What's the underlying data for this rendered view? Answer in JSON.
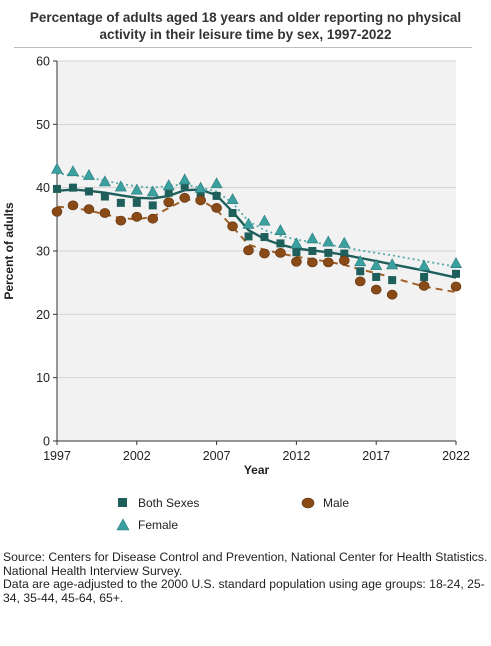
{
  "title": "Percentage of adults aged 18 years and older reporting no physical activity in their leisure time by sex, 1997-2022",
  "colors": {
    "both": "#1f5f5b",
    "male": "#8a4a16",
    "male_line": "#a0622a",
    "female": "#3aa0a0",
    "female_line": "#5aa9a9",
    "plot_bg": "#f2f2f2",
    "grid": "#ffffff"
  },
  "chart_data": {
    "type": "scatter",
    "title": "Percentage of adults aged 18 years and older reporting no physical activity in their leisure time by sex, 1997-2022",
    "xlabel": "Year",
    "ylabel": "Percent of adults",
    "xlim": [
      1997,
      2022
    ],
    "ylim": [
      0,
      60
    ],
    "xticks": [
      1997,
      2002,
      2007,
      2012,
      2017,
      2022
    ],
    "yticks": [
      0,
      10,
      20,
      30,
      40,
      50,
      60
    ],
    "grid": true,
    "legend": "bottom",
    "series": [
      {
        "name": "Both Sexes",
        "marker": "square",
        "trend": "solid",
        "x": [
          1997,
          1998,
          1999,
          2000,
          2001,
          2002,
          2003,
          2004,
          2005,
          2006,
          2007,
          2008,
          2009,
          2010,
          2011,
          2012,
          2013,
          2014,
          2015,
          2016,
          2017,
          2018,
          2020,
          2022
        ],
        "values": [
          39.8,
          40.0,
          39.4,
          38.6,
          37.6,
          37.6,
          37.2,
          39.2,
          40.3,
          39.0,
          38.7,
          36.0,
          32.3,
          32.2,
          31.2,
          29.8,
          30.0,
          29.7,
          29.6,
          26.8,
          25.9,
          25.4,
          25.9,
          26.4
        ],
        "trend_values": [
          39.5,
          39.7,
          39.5,
          39.2,
          38.8,
          38.4,
          38.3,
          38.7,
          39.6,
          39.7,
          38.8,
          36.2,
          33.3,
          31.9,
          31.0,
          30.4,
          30.1,
          29.8,
          29.4,
          28.9,
          28.4,
          27.9,
          26.9,
          25.8
        ]
      },
      {
        "name": "Male",
        "marker": "circle",
        "trend": "dashed",
        "x": [
          1997,
          1998,
          1999,
          2000,
          2001,
          2002,
          2003,
          2004,
          2005,
          2006,
          2007,
          2008,
          2009,
          2010,
          2011,
          2012,
          2013,
          2014,
          2015,
          2016,
          2017,
          2018,
          2020,
          2022
        ],
        "values": [
          36.2,
          37.2,
          36.6,
          36.0,
          34.8,
          35.4,
          35.1,
          37.7,
          38.4,
          38.0,
          36.8,
          33.9,
          30.1,
          29.6,
          29.7,
          28.3,
          28.2,
          28.2,
          28.5,
          25.2,
          23.9,
          23.1,
          24.5,
          24.4
        ],
        "trend_values": [
          37.0,
          36.8,
          36.4,
          35.8,
          35.2,
          35.0,
          35.4,
          36.8,
          38.1,
          38.1,
          36.5,
          33.8,
          31.0,
          30.2,
          29.6,
          29.1,
          28.7,
          28.3,
          27.8,
          27.1,
          26.5,
          25.8,
          24.4,
          23.5
        ]
      },
      {
        "name": "Female",
        "marker": "triangle",
        "trend": "dotted",
        "x": [
          1997,
          1998,
          1999,
          2000,
          2001,
          2002,
          2003,
          2004,
          2005,
          2006,
          2007,
          2008,
          2009,
          2010,
          2011,
          2012,
          2013,
          2014,
          2015,
          2016,
          2017,
          2018,
          2020,
          2022
        ],
        "values": [
          42.9,
          42.5,
          41.9,
          40.9,
          40.1,
          39.6,
          39.3,
          40.3,
          41.2,
          39.9,
          40.6,
          38.1,
          34.2,
          34.7,
          33.2,
          31.1,
          31.9,
          31.4,
          31.2,
          28.3,
          27.7,
          27.8,
          27.6,
          28.0
        ],
        "trend_values": [
          42.2,
          42.0,
          41.6,
          41.1,
          40.6,
          40.2,
          40.0,
          40.3,
          40.5,
          40.0,
          39.4,
          37.6,
          34.7,
          33.3,
          32.4,
          31.8,
          31.4,
          31.0,
          30.6,
          30.1,
          29.7,
          29.3,
          28.4,
          27.5
        ]
      }
    ]
  },
  "legend": {
    "both": "Both Sexes",
    "male": "Male",
    "female": "Female"
  },
  "source": {
    "line1": "Source: Centers for Disease Control and Prevention, National Center for Health Statistics. National Health Interview Survey.",
    "line2": "Data are age-adjusted to the 2000 U.S. standard population using age groups: 18-24, 25-34, 35-44, 45-64, 65+."
  }
}
